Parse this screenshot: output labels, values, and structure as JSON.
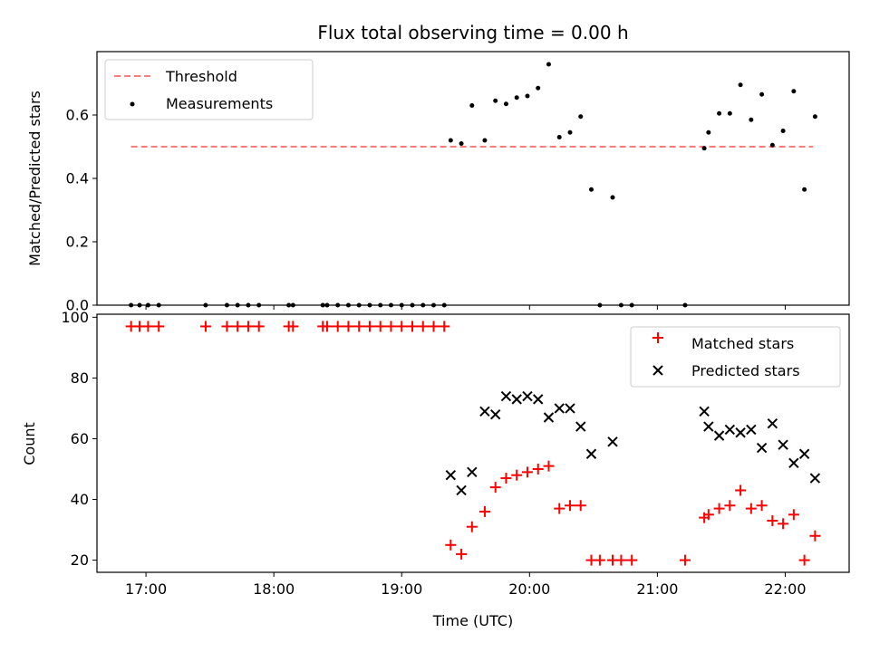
{
  "chart_data": {
    "title": "Flux total observing time = 0.00 h",
    "xlabel": "Time (UTC)",
    "x_unit": "hours UTC",
    "xlim": [
      "16:37",
      "22:30"
    ],
    "xticks": [
      "17:00",
      "18:00",
      "19:00",
      "20:00",
      "21:00",
      "22:00"
    ],
    "panels": [
      {
        "type": "scatter",
        "ylabel": "Matched/Predicted stars",
        "ylim": [
          0,
          0.8
        ],
        "yticks": [
          "0.0",
          "0.2",
          "0.4",
          "0.6"
        ],
        "legend_position": "upper left",
        "colors": {
          "threshold": "#ff7b7b",
          "measurements": "#000000"
        },
        "threshold": {
          "name": "Threshold",
          "y": 0.5,
          "x_range": [
            "16:53",
            "22:13"
          ]
        },
        "series": [
          {
            "name": "Measurements",
            "points": [
              [
                "16:53",
                0
              ],
              [
                "16:57",
                0
              ],
              [
                "17:01",
                0
              ],
              [
                "17:06",
                0
              ],
              [
                "17:28",
                0
              ],
              [
                "17:38",
                0
              ],
              [
                "17:43",
                0
              ],
              [
                "17:48",
                0
              ],
              [
                "17:53",
                0
              ],
              [
                "18:07",
                0
              ],
              [
                "18:09",
                0
              ],
              [
                "18:23",
                0
              ],
              [
                "18:25",
                0
              ],
              [
                "18:30",
                0
              ],
              [
                "18:35",
                0
              ],
              [
                "18:40",
                0
              ],
              [
                "18:45",
                0
              ],
              [
                "18:50",
                0
              ],
              [
                "18:55",
                0
              ],
              [
                "19:00",
                0
              ],
              [
                "19:05",
                0
              ],
              [
                "19:10",
                0
              ],
              [
                "19:15",
                0
              ],
              [
                "19:20",
                0
              ],
              [
                "19:23",
                0.52
              ],
              [
                "19:28",
                0.51
              ],
              [
                "19:33",
                0.63
              ],
              [
                "19:39",
                0.52
              ],
              [
                "19:44",
                0.645
              ],
              [
                "19:49",
                0.635
              ],
              [
                "19:54",
                0.655
              ],
              [
                "19:59",
                0.66
              ],
              [
                "20:04",
                0.685
              ],
              [
                "20:09",
                0.76
              ],
              [
                "20:14",
                0.53
              ],
              [
                "20:19",
                0.545
              ],
              [
                "20:24",
                0.595
              ],
              [
                "20:29",
                0.365
              ],
              [
                "20:33",
                0
              ],
              [
                "20:39",
                0.34
              ],
              [
                "20:43",
                0
              ],
              [
                "20:48",
                0
              ],
              [
                "21:13",
                0
              ],
              [
                "21:22",
                0.495
              ],
              [
                "21:24",
                0.545
              ],
              [
                "21:29",
                0.605
              ],
              [
                "21:34",
                0.605
              ],
              [
                "21:39",
                0.695
              ],
              [
                "21:44",
                0.585
              ],
              [
                "21:49",
                0.665
              ],
              [
                "21:54",
                0.505
              ],
              [
                "21:59",
                0.55
              ],
              [
                "22:04",
                0.675
              ],
              [
                "22:09",
                0.365
              ],
              [
                "22:14",
                0.595
              ]
            ]
          }
        ]
      },
      {
        "type": "scatter",
        "ylabel": "Count",
        "ylim": [
          16,
          101
        ],
        "yticks": [
          "20",
          "40",
          "60",
          "80",
          "100"
        ],
        "legend_position": "upper right",
        "colors": {
          "matched": "#ff0000",
          "predicted": "#000000"
        },
        "series": [
          {
            "name": "Matched stars",
            "marker": "+",
            "points": [
              [
                "16:53",
                97
              ],
              [
                "16:57",
                97
              ],
              [
                "17:01",
                97
              ],
              [
                "17:06",
                97
              ],
              [
                "17:28",
                97
              ],
              [
                "17:38",
                97
              ],
              [
                "17:43",
                97
              ],
              [
                "17:48",
                97
              ],
              [
                "17:53",
                97
              ],
              [
                "18:07",
                97
              ],
              [
                "18:09",
                97
              ],
              [
                "18:23",
                97
              ],
              [
                "18:25",
                97
              ],
              [
                "18:30",
                97
              ],
              [
                "18:35",
                97
              ],
              [
                "18:40",
                97
              ],
              [
                "18:45",
                97
              ],
              [
                "18:50",
                97
              ],
              [
                "18:55",
                97
              ],
              [
                "19:00",
                97
              ],
              [
                "19:05",
                97
              ],
              [
                "19:10",
                97
              ],
              [
                "19:15",
                97
              ],
              [
                "19:20",
                97
              ],
              [
                "19:23",
                25
              ],
              [
                "19:28",
                22
              ],
              [
                "19:33",
                31
              ],
              [
                "19:39",
                36
              ],
              [
                "19:44",
                44
              ],
              [
                "19:49",
                47
              ],
              [
                "19:54",
                48
              ],
              [
                "19:59",
                49
              ],
              [
                "20:04",
                50
              ],
              [
                "20:09",
                51
              ],
              [
                "20:14",
                37
              ],
              [
                "20:19",
                38
              ],
              [
                "20:24",
                38
              ],
              [
                "20:29",
                20
              ],
              [
                "20:33",
                20
              ],
              [
                "20:39",
                20
              ],
              [
                "20:43",
                20
              ],
              [
                "20:48",
                20
              ],
              [
                "21:13",
                20
              ],
              [
                "21:22",
                34
              ],
              [
                "21:24",
                35
              ],
              [
                "21:29",
                37
              ],
              [
                "21:34",
                38
              ],
              [
                "21:39",
                43
              ],
              [
                "21:44",
                37
              ],
              [
                "21:49",
                38
              ],
              [
                "21:54",
                33
              ],
              [
                "21:59",
                32
              ],
              [
                "22:04",
                35
              ],
              [
                "22:09",
                20
              ],
              [
                "22:14",
                28
              ]
            ]
          },
          {
            "name": "Predicted stars",
            "marker": "x",
            "points": [
              [
                "19:23",
                48
              ],
              [
                "19:28",
                43
              ],
              [
                "19:33",
                49
              ],
              [
                "19:39",
                69
              ],
              [
                "19:44",
                68
              ],
              [
                "19:49",
                74
              ],
              [
                "19:54",
                73
              ],
              [
                "19:59",
                74
              ],
              [
                "20:04",
                73
              ],
              [
                "20:09",
                67
              ],
              [
                "20:14",
                70
              ],
              [
                "20:19",
                70
              ],
              [
                "20:24",
                64
              ],
              [
                "20:29",
                55
              ],
              [
                "20:39",
                59
              ],
              [
                "21:22",
                69
              ],
              [
                "21:24",
                64
              ],
              [
                "21:29",
                61
              ],
              [
                "21:34",
                63
              ],
              [
                "21:39",
                62
              ],
              [
                "21:44",
                63
              ],
              [
                "21:49",
                57
              ],
              [
                "21:54",
                65
              ],
              [
                "21:59",
                58
              ],
              [
                "22:04",
                52
              ],
              [
                "22:09",
                55
              ],
              [
                "22:14",
                47
              ]
            ]
          }
        ]
      }
    ]
  }
}
